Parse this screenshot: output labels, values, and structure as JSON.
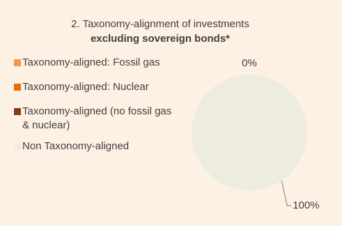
{
  "chart_data": {
    "type": "pie",
    "title": "2. Taxonomy-alignment of investments",
    "subtitle": "excluding sovereign bonds*",
    "series": [
      {
        "name": "Taxonomy-aligned: Fossil gas",
        "color": "#f79646"
      },
      {
        "name": "Taxonomy-aligned: Nuclear",
        "color": "#e46c0a"
      },
      {
        "name": "Taxonomy-aligned (no fossil gas & nuclear)",
        "color": "#843c0c"
      },
      {
        "name": "Non Taxonomy-aligned",
        "color": "#eeece1"
      }
    ],
    "values": [
      0,
      0,
      0,
      100
    ],
    "value_labels": [
      "0%",
      null,
      null,
      "100%"
    ]
  }
}
